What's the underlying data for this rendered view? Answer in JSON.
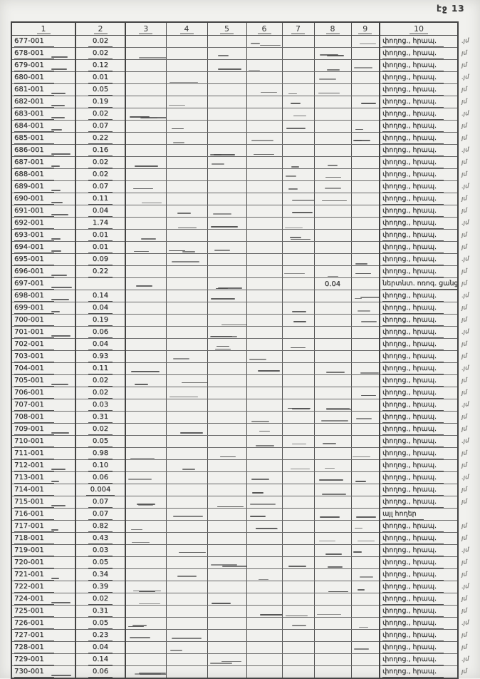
{
  "page": {
    "label": "էջ 13"
  },
  "table": {
    "headers": [
      "1",
      "2",
      "3",
      "4",
      "5",
      "6",
      "7",
      "8",
      "9",
      "10"
    ],
    "edge_mark": "յմ",
    "rows": [
      {
        "id": "677-001",
        "area": "0.02",
        "col8": "",
        "usage": "փողոց., հրապ.",
        "mark": true
      },
      {
        "id": "678-001",
        "area": "0.02",
        "col8": "",
        "usage": "փողոց., հրապ.",
        "mark": true
      },
      {
        "id": "679-001",
        "area": "0.12",
        "col8": "",
        "usage": "փողոց., հրապ.",
        "mark": true
      },
      {
        "id": "680-001",
        "area": "0.01",
        "col8": "",
        "usage": "փողոց., հրապ.",
        "mark": true
      },
      {
        "id": "681-001",
        "area": "0.05",
        "col8": "",
        "usage": "փողոց., հրապ.",
        "mark": true
      },
      {
        "id": "682-001",
        "area": "0.19",
        "col8": "",
        "usage": "փողոց., հրապ.",
        "mark": true
      },
      {
        "id": "683-001",
        "area": "0.02",
        "col8": "",
        "usage": "փողոց., հրապ.",
        "mark": true
      },
      {
        "id": "684-001",
        "area": "0.07",
        "col8": "",
        "usage": "փողոց., հրապ.",
        "mark": true
      },
      {
        "id": "685-001",
        "area": "0.22",
        "col8": "",
        "usage": "փողոց., հրապ.",
        "mark": true
      },
      {
        "id": "686-001",
        "area": "0.16",
        "col8": "",
        "usage": "փողոց., հրապ.",
        "mark": true
      },
      {
        "id": "687-001",
        "area": "0.02",
        "col8": "",
        "usage": "փողոց., հրապ.",
        "mark": true
      },
      {
        "id": "688-001",
        "area": "0.02",
        "col8": "",
        "usage": "փողոց., հրապ.",
        "mark": true
      },
      {
        "id": "689-001",
        "area": "0.07",
        "col8": "",
        "usage": "փողոց., հրապ.",
        "mark": true
      },
      {
        "id": "690-001",
        "area": "0.11",
        "col8": "",
        "usage": "փողոց., հրապ.",
        "mark": true
      },
      {
        "id": "691-001",
        "area": "0.04",
        "col8": "",
        "usage": "փողոց., հրապ.",
        "mark": true
      },
      {
        "id": "692-001",
        "area": "1.74",
        "col8": "",
        "usage": "փողոց., հրապ.",
        "mark": true
      },
      {
        "id": "693-001",
        "area": "0.01",
        "col8": "",
        "usage": "փողոց., հրապ.",
        "mark": true
      },
      {
        "id": "694-001",
        "area": "0.01",
        "col8": "",
        "usage": "փողոց., հրապ.",
        "mark": true
      },
      {
        "id": "695-001",
        "area": "0.09",
        "col8": "",
        "usage": "փողոց., հրապ.",
        "mark": true
      },
      {
        "id": "696-001",
        "area": "0.22",
        "col8": "",
        "usage": "փողոց., հրապ.",
        "mark": true
      },
      {
        "id": "697-001",
        "area": "",
        "col8": "0.04",
        "usage": "ներտնտ. ոռոգ. ցանց",
        "mark": true
      },
      {
        "id": "698-001",
        "area": "0.14",
        "col8": "",
        "usage": "փողոց., հրապ.",
        "mark": true
      },
      {
        "id": "699-001",
        "area": "0.04",
        "col8": "",
        "usage": "փողոց., հրապ.",
        "mark": true
      },
      {
        "id": "700-001",
        "area": "0.19",
        "col8": "",
        "usage": "փողոց., հրապ.",
        "mark": true
      },
      {
        "id": "701-001",
        "area": "0.06",
        "col8": "",
        "usage": "փողոց., հրապ.",
        "mark": true
      },
      {
        "id": "702-001",
        "area": "0.04",
        "col8": "",
        "usage": "փողոց., հրապ.",
        "mark": true
      },
      {
        "id": "703-001",
        "area": "0.93",
        "col8": "",
        "usage": "փողոց., հրապ.",
        "mark": true
      },
      {
        "id": "704-001",
        "area": "0.11",
        "col8": "",
        "usage": "փողոց., հրապ.",
        "mark": true
      },
      {
        "id": "705-001",
        "area": "0.02",
        "col8": "",
        "usage": "փողոց., հրապ.",
        "mark": true
      },
      {
        "id": "706-001",
        "area": "0.02",
        "col8": "",
        "usage": "փողոց., հրապ.",
        "mark": true
      },
      {
        "id": "707-001",
        "area": "0.03",
        "col8": "",
        "usage": "փողոց., հրապ.",
        "mark": true
      },
      {
        "id": "708-001",
        "area": "0.31",
        "col8": "",
        "usage": "փողոց., հրապ.",
        "mark": true
      },
      {
        "id": "709-001",
        "area": "0.02",
        "col8": "",
        "usage": "փողոց., հրապ.",
        "mark": true
      },
      {
        "id": "710-001",
        "area": "0.05",
        "col8": "",
        "usage": "փողոց., հրապ.",
        "mark": true
      },
      {
        "id": "711-001",
        "area": "0.98",
        "col8": "",
        "usage": "փողոց., հրապ.",
        "mark": true
      },
      {
        "id": "712-001",
        "area": "0.10",
        "col8": "",
        "usage": "փողոց., հրապ.",
        "mark": true
      },
      {
        "id": "713-001",
        "area": "0.06",
        "col8": "",
        "usage": "փողոց., հրապ.",
        "mark": true
      },
      {
        "id": "714-001",
        "area": "0.004",
        "col8": "",
        "usage": "փողոց., հրապ.",
        "mark": true
      },
      {
        "id": "715-001",
        "area": "0.07",
        "col8": "",
        "usage": "փողոց., հրապ.",
        "mark": true
      },
      {
        "id": "716-001",
        "area": "0.07",
        "col8": "",
        "usage": "այլ հողեր",
        "mark": false
      },
      {
        "id": "717-001",
        "area": "0.82",
        "col8": "",
        "usage": "փողոց., հրապ.",
        "mark": true
      },
      {
        "id": "718-001",
        "area": "0.43",
        "col8": "",
        "usage": "փողոց., հրապ.",
        "mark": true
      },
      {
        "id": "719-001",
        "area": "0.03",
        "col8": "",
        "usage": "փողոց., հրապ.",
        "mark": true
      },
      {
        "id": "720-001",
        "area": "0.05",
        "col8": "",
        "usage": "փողոց., հրապ.",
        "mark": true
      },
      {
        "id": "721-001",
        "area": "0.34",
        "col8": "",
        "usage": "փողոց., հրապ.",
        "mark": true
      },
      {
        "id": "722-001",
        "area": "0.39",
        "col8": "",
        "usage": "փողոց., հրապ.",
        "mark": true
      },
      {
        "id": "724-001",
        "area": "0.02",
        "col8": "",
        "usage": "փողոց., հրապ.",
        "mark": true
      },
      {
        "id": "725-001",
        "area": "0.31",
        "col8": "",
        "usage": "փողոց., հրապ.",
        "mark": true
      },
      {
        "id": "726-001",
        "area": "0.05",
        "col8": "",
        "usage": "փողոց., հրապ.",
        "mark": true
      },
      {
        "id": "727-001",
        "area": "0.23",
        "col8": "",
        "usage": "փողոց., հրապ.",
        "mark": true
      },
      {
        "id": "728-001",
        "area": "0.04",
        "col8": "",
        "usage": "փողոց., հրապ.",
        "mark": true
      },
      {
        "id": "729-001",
        "area": "0.14",
        "col8": "",
        "usage": "փողոց., հրապ.",
        "mark": true
      },
      {
        "id": "730-001",
        "area": "0.06",
        "col8": "",
        "usage": "փողոց., հրապ.",
        "mark": true
      }
    ]
  }
}
